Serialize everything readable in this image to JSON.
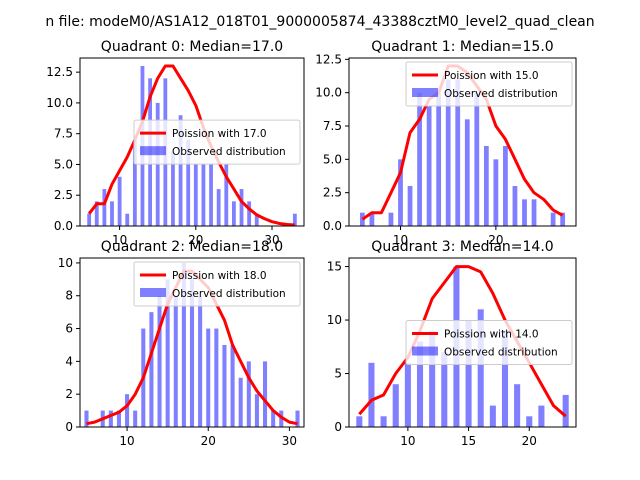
{
  "suptitle": "n file: modeM0/AS1A12_018T01_9000005874_43388cztM0_level2_quad_clean",
  "colors": {
    "poisson": "#ff0000",
    "observed": "#0000ff",
    "axis": "#000000"
  },
  "chart_data": [
    {
      "type": "bar",
      "title": "Quadrant 0: Median=17.0",
      "xlim": [
        4.8,
        34.2
      ],
      "ylim": [
        0,
        13.65
      ],
      "xticks": [
        10,
        20,
        30
      ],
      "yticks": [
        0.0,
        2.5,
        5.0,
        7.5,
        10.0,
        12.5
      ],
      "ytick_labels": [
        "0.0",
        "2.5",
        "5.0",
        "7.5",
        "10.0",
        "12.5"
      ],
      "legend_position": "center-right",
      "series": [
        {
          "name": "Poission with 17.0",
          "kind": "step-line",
          "x": [
            6,
            7,
            8,
            9,
            10,
            11,
            12,
            13,
            14,
            15,
            16,
            17,
            18,
            19,
            20,
            21,
            22,
            23,
            24,
            25,
            26,
            27,
            28,
            29,
            30,
            31,
            32,
            33
          ],
          "values": [
            1.0,
            1.8,
            1.8,
            3.4,
            4.5,
            5.6,
            7.0,
            8.5,
            10.5,
            12.0,
            13.0,
            13.0,
            12.0,
            11.0,
            9.8,
            8.0,
            6.5,
            5.2,
            4.0,
            3.0,
            2.0,
            1.4,
            0.9,
            0.6,
            0.35,
            0.2,
            0.12,
            0.08
          ]
        },
        {
          "name": "Observed distribution",
          "kind": "bar",
          "x": [
            6,
            7,
            8,
            9,
            10,
            11,
            12,
            13,
            14,
            15,
            16,
            17,
            18,
            19,
            20,
            21,
            22,
            23,
            24,
            25,
            26,
            27,
            28,
            29,
            30,
            31,
            32,
            33
          ],
          "values": [
            1,
            2,
            3,
            2,
            4,
            1,
            7,
            13,
            12,
            10,
            12,
            6,
            9,
            7,
            5,
            5,
            5,
            3,
            5,
            2,
            3,
            2,
            1,
            0,
            0,
            0,
            0,
            1
          ]
        }
      ]
    },
    {
      "type": "bar",
      "title": "Quadrant 1: Median=15.0",
      "xlim": [
        4.6,
        28.4
      ],
      "ylim": [
        0,
        12.6
      ],
      "xticks": [
        10,
        20
      ],
      "yticks": [
        0.0,
        2.5,
        5.0,
        7.5,
        10.0,
        12.5
      ],
      "ytick_labels": [
        "0.0",
        "2.5",
        "5.0",
        "7.5",
        "10.0",
        "12.5"
      ],
      "legend_position": "upper-right",
      "series": [
        {
          "name": "Poission with 15.0",
          "kind": "step-line",
          "x": [
            6,
            7,
            8,
            9,
            10,
            11,
            12,
            13,
            14,
            15,
            16,
            17,
            18,
            19,
            20,
            21,
            22,
            23,
            24,
            25,
            26,
            27
          ],
          "values": [
            0.5,
            1.0,
            1.0,
            2.5,
            4.0,
            7.0,
            8.0,
            9.5,
            10.0,
            12.0,
            12.0,
            11.5,
            10.5,
            9.5,
            7.5,
            6.5,
            5.0,
            3.5,
            2.5,
            2.0,
            1.2,
            0.8
          ]
        },
        {
          "name": "Observed distribution",
          "kind": "bar",
          "x": [
            6,
            7,
            8,
            9,
            10,
            11,
            12,
            13,
            14,
            15,
            16,
            17,
            18,
            19,
            20,
            21,
            22,
            23,
            24,
            25,
            26,
            27
          ],
          "values": [
            1,
            1,
            0,
            1,
            5,
            3,
            10,
            9,
            10,
            11,
            11,
            8,
            10,
            6,
            5,
            6,
            3,
            2,
            2,
            0,
            1,
            1
          ]
        }
      ]
    },
    {
      "type": "bar",
      "title": "Quadrant 2: Median=18.0",
      "xlim": [
        4.2,
        31.8
      ],
      "ylim": [
        0,
        10.3
      ],
      "xticks": [
        10,
        20,
        30
      ],
      "yticks": [
        0,
        2,
        4,
        6,
        8,
        10
      ],
      "ytick_labels": [
        "0",
        "2",
        "4",
        "6",
        "8",
        "10"
      ],
      "legend_position": "upper-right",
      "series": [
        {
          "name": "Poission with 18.0",
          "kind": "step-line",
          "x": [
            5,
            6,
            7,
            8,
            9,
            10,
            11,
            12,
            13,
            14,
            15,
            16,
            17,
            18,
            19,
            20,
            21,
            22,
            23,
            24,
            25,
            26,
            27,
            28,
            29,
            30,
            31
          ],
          "values": [
            0.2,
            0.3,
            0.5,
            0.7,
            0.9,
            1.3,
            2.0,
            3.0,
            4.5,
            6.0,
            7.5,
            8.5,
            9.5,
            9.5,
            9.0,
            8.5,
            7.5,
            6.5,
            5.0,
            4.0,
            3.0,
            2.2,
            1.6,
            1.0,
            0.6,
            0.3,
            0.2
          ]
        },
        {
          "name": "Observed distribution",
          "kind": "bar",
          "x": [
            5,
            6,
            7,
            8,
            9,
            10,
            11,
            12,
            13,
            14,
            15,
            16,
            17,
            18,
            19,
            20,
            21,
            22,
            23,
            24,
            25,
            26,
            27,
            28,
            29,
            30,
            31
          ],
          "values": [
            1,
            0,
            1,
            1,
            1,
            2,
            1,
            6,
            7,
            8,
            9,
            8,
            10,
            9,
            8,
            6,
            6,
            5,
            5,
            3,
            4,
            2,
            4,
            1,
            1,
            0,
            1
          ]
        }
      ]
    },
    {
      "type": "bar",
      "title": "Quadrant 3: Median=14.0",
      "xlim": [
        5.15,
        23.85
      ],
      "ylim": [
        0,
        15.8
      ],
      "xticks": [
        10,
        15,
        20
      ],
      "yticks": [
        0,
        5,
        10,
        15
      ],
      "ytick_labels": [
        "0",
        "5",
        "10",
        "15"
      ],
      "legend_position": "center-right",
      "series": [
        {
          "name": "Poission with 14.0",
          "kind": "step-line",
          "x": [
            6,
            7,
            8,
            9,
            10,
            11,
            12,
            13,
            14,
            15,
            16,
            17,
            18,
            19,
            20,
            21,
            22,
            23
          ],
          "values": [
            1.2,
            2.5,
            3.0,
            5.0,
            6.5,
            9.0,
            12.0,
            13.5,
            15.0,
            15.0,
            14.5,
            12.5,
            10.0,
            8.0,
            6.0,
            4.0,
            2.0,
            1.0
          ]
        },
        {
          "name": "Observed distribution",
          "kind": "bar",
          "x": [
            6,
            7,
            8,
            9,
            10,
            11,
            12,
            13,
            14,
            15,
            16,
            17,
            18,
            19,
            20,
            21,
            22,
            23
          ],
          "values": [
            1,
            6,
            1,
            4,
            6,
            8,
            9,
            7,
            15,
            10,
            11,
            2,
            9,
            4,
            1,
            2,
            0,
            3
          ]
        }
      ]
    }
  ]
}
